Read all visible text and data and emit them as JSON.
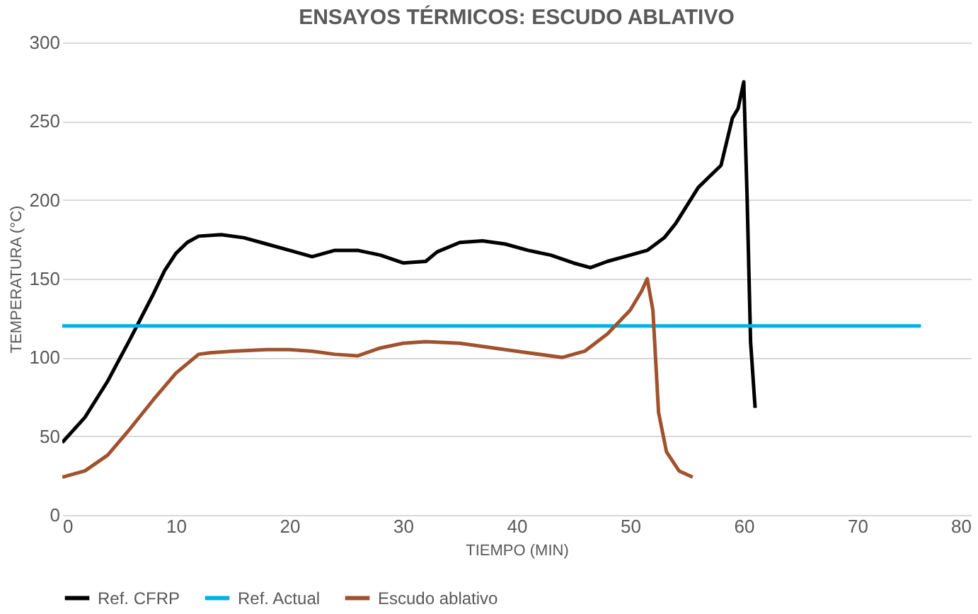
{
  "chart_data": {
    "type": "line",
    "title": "ENSAYOS TÉRMICOS: ESCUDO ABLATIVO",
    "xlabel": "TIEMPO (MIN)",
    "ylabel": "TEMPERATURA (°C)",
    "xlim": [
      0,
      80
    ],
    "xticks": [
      0,
      10,
      20,
      30,
      40,
      50,
      60,
      70,
      80
    ],
    "ylim": [
      0,
      300
    ],
    "yticks": [
      0,
      50,
      100,
      150,
      200,
      250,
      300
    ],
    "grid": "y",
    "legend": "bottom",
    "marker": "none",
    "line_style": "solid",
    "series": [
      {
        "name": "Ref. CFRP",
        "color": "#000000",
        "x": [
          0,
          2,
          4,
          6,
          8,
          9,
          10,
          11,
          12,
          14,
          16,
          18,
          20,
          22,
          24,
          26,
          28,
          30,
          32,
          33,
          35,
          37,
          39,
          41,
          43,
          45,
          46.5,
          48,
          50,
          51.5,
          53,
          54,
          56,
          58,
          59,
          59.5,
          60,
          60.3,
          60.6,
          61
        ],
        "values": [
          46,
          62,
          85,
          112,
          140,
          155,
          166,
          173,
          177,
          178,
          176,
          172,
          168,
          164,
          168,
          168,
          165,
          160,
          161,
          167,
          173,
          174,
          172,
          168,
          165,
          160,
          157,
          161,
          165,
          168,
          176,
          185,
          208,
          222,
          252,
          258,
          275,
          200,
          110,
          68
        ]
      },
      {
        "name": "Ref. Actual",
        "color": "#00b0f0",
        "x": [
          0,
          75.6
        ],
        "values": [
          120,
          120
        ]
      },
      {
        "name": "Escudo ablativo",
        "color": "#a0522d",
        "x": [
          0,
          2,
          4,
          6,
          8,
          10,
          12,
          13,
          15,
          18,
          20,
          22,
          24,
          26,
          28,
          30,
          32,
          35,
          38,
          41,
          44,
          46,
          48,
          50,
          51,
          51.5,
          52,
          52.5,
          53.2,
          54.3,
          55.5
        ],
        "values": [
          24,
          28,
          38,
          55,
          73,
          90,
          102,
          103,
          104,
          105,
          105,
          104,
          102,
          101,
          106,
          109,
          110,
          109,
          106,
          103,
          100,
          104,
          115,
          130,
          142,
          150,
          130,
          65,
          40,
          28,
          24
        ]
      }
    ]
  }
}
